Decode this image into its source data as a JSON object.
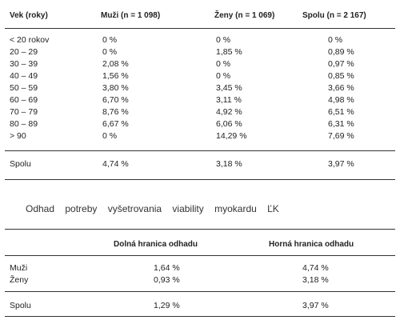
{
  "table1": {
    "headers": [
      "Vek (roky)",
      "Muži (n = 1 098)",
      "Ženy (n = 1 069)",
      "Spolu (n = 2 167)"
    ],
    "rows": [
      [
        "< 20 rokov",
        "0 %",
        "0 %",
        "0 %"
      ],
      [
        "20 – 29",
        "0 %",
        "1,85 %",
        "0,89 %"
      ],
      [
        "30 – 39",
        "2,08 %",
        "0 %",
        "0,97 %"
      ],
      [
        "40 – 49",
        "1,56 %",
        "0 %",
        "0,85 %"
      ],
      [
        "50 – 59",
        "3,80 %",
        "3,45 %",
        "3,66 %"
      ],
      [
        "60 – 69",
        "6,70 %",
        "3,11 %",
        "4,98 %"
      ],
      [
        "70 – 79",
        "8,76 %",
        "4,92 %",
        "6,51 %"
      ],
      [
        "80 – 89",
        "6,67 %",
        "6,06 %",
        "6,31 %"
      ],
      [
        "> 90",
        "0 %",
        "14,29 %",
        "7,69 %"
      ]
    ],
    "total": [
      "Spolu",
      "4,74 %",
      "3,18 %",
      "3,97 %"
    ]
  },
  "caption": "Odhad potreby vyšetrovania viability myokardu ĽK",
  "table2": {
    "headers": [
      "",
      "Dolná hranica odhadu",
      "Horná hranica odhadu"
    ],
    "rows": [
      [
        "Muži",
        "1,64 %",
        "4,74 %"
      ],
      [
        "Ženy",
        "0,93 %",
        "3,18 %"
      ]
    ],
    "total": [
      "Spolu",
      "1,29 %",
      "3,97 %"
    ]
  }
}
